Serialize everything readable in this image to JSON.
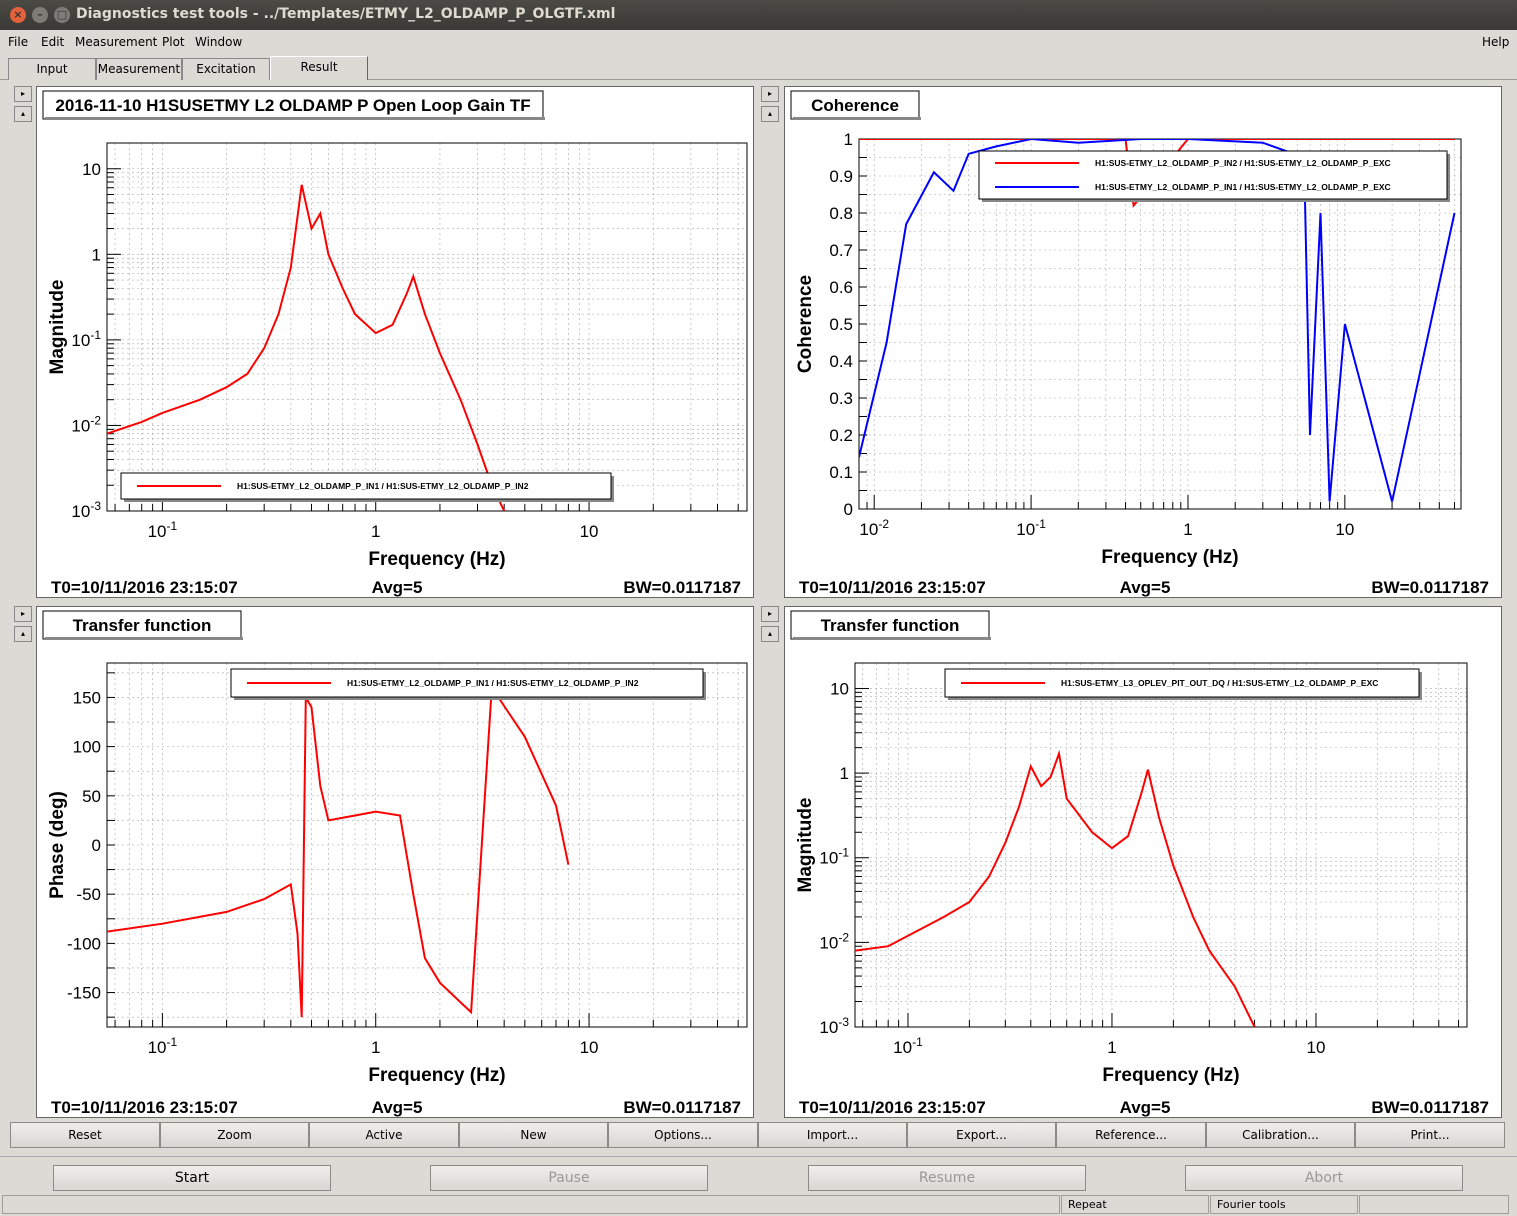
{
  "window": {
    "title": "Diagnostics test tools - ../Templates/ETMY_L2_OLDAMP_P_OLGTF.xml"
  },
  "menu": {
    "file": "File",
    "edit": "Edit",
    "measurement": "Measurement",
    "plot": "Plot",
    "window": "Window",
    "help": "Help"
  },
  "tabs": [
    {
      "label": "Input"
    },
    {
      "label": "Measurement"
    },
    {
      "label": "Excitation"
    },
    {
      "label": "Result"
    }
  ],
  "plots": [
    {
      "title": "2016-11-10 H1SUSETMY L2 OLDAMP P Open Loop Gain TF",
      "ylabel": "Magnitude",
      "xlabel": "Frequency (Hz)",
      "xticks": [
        "10^-1",
        "1",
        "10"
      ],
      "yticks": [
        "10",
        "1",
        "10^-1",
        "10^-2",
        "10^-3"
      ],
      "legend": [
        "H1:SUS-ETMY_L2_OLDAMP_P_IN1 / H1:SUS-ETMY_L2_OLDAMP_P_IN2"
      ],
      "t0": "T0=10/11/2016 23:15:07",
      "avg": "Avg=5",
      "bw": "BW=0.0117187"
    },
    {
      "title": "Coherence",
      "ylabel": "Coherence",
      "xlabel": "Frequency (Hz)",
      "xticks": [
        "10^-2",
        "10^-1",
        "1",
        "10"
      ],
      "yticks": [
        "1",
        "0.9",
        "0.8",
        "0.7",
        "0.6",
        "0.5",
        "0.4",
        "0.3",
        "0.2",
        "0.1",
        "0"
      ],
      "legend": [
        "H1:SUS-ETMY_L2_OLDAMP_P_IN2 / H1:SUS-ETMY_L2_OLDAMP_P_EXC",
        "H1:SUS-ETMY_L2_OLDAMP_P_IN1 / H1:SUS-ETMY_L2_OLDAMP_P_EXC"
      ],
      "t0": "T0=10/11/2016 23:15:07",
      "avg": "Avg=5",
      "bw": "BW=0.0117187"
    },
    {
      "title": "Transfer function",
      "ylabel": "Phase (deg)",
      "xlabel": "Frequency (Hz)",
      "xticks": [
        "10^-1",
        "1",
        "10"
      ],
      "yticks": [
        "150",
        "100",
        "50",
        "0",
        "-50",
        "-100",
        "-150"
      ],
      "legend": [
        "H1:SUS-ETMY_L2_OLDAMP_P_IN1 / H1:SUS-ETMY_L2_OLDAMP_P_IN2"
      ],
      "t0": "T0=10/11/2016 23:15:07",
      "avg": "Avg=5",
      "bw": "BW=0.0117187"
    },
    {
      "title": "Transfer function",
      "ylabel": "Magnitude",
      "xlabel": "Frequency (Hz)",
      "xticks": [
        "10^-1",
        "1",
        "10"
      ],
      "yticks": [
        "10",
        "1",
        "10^-1",
        "10^-2",
        "10^-3"
      ],
      "legend": [
        "H1:SUS-ETMY_L3_OPLEV_PIT_OUT_DQ / H1:SUS-ETMY_L2_OLDAMP_P_EXC"
      ],
      "t0": "T0=10/11/2016 23:15:07",
      "avg": "Avg=5",
      "bw": "BW=0.0117187"
    }
  ],
  "buttons": [
    "Reset",
    "Zoom",
    "Active",
    "New",
    "Options...",
    "Import...",
    "Export...",
    "Reference...",
    "Calibration...",
    "Print..."
  ],
  "controls": {
    "start": "Start",
    "pause": "Pause",
    "resume": "Resume",
    "abort": "Abort"
  },
  "status": {
    "repeat": "Repeat",
    "fourier": "Fourier tools"
  },
  "colors": {
    "trace_red": "#ff0000",
    "trace_blue": "#0000ff"
  },
  "chart_data": [
    {
      "type": "line",
      "scale": "log-log",
      "xlim": [
        0.055,
        55
      ],
      "ylim": [
        0.001,
        20
      ],
      "series": [
        {
          "name": "H1:SUS-ETMY_L2_OLDAMP_P_IN1 / H1:SUS-ETMY_L2_OLDAMP_P_IN2",
          "x": [
            0.055,
            0.08,
            0.1,
            0.15,
            0.2,
            0.25,
            0.3,
            0.35,
            0.4,
            0.45,
            0.5,
            0.55,
            0.6,
            0.7,
            0.8,
            1.0,
            1.2,
            1.4,
            1.5,
            1.7,
            2.0,
            2.5,
            3.0,
            3.5,
            4.0
          ],
          "y": [
            0.008,
            0.011,
            0.014,
            0.02,
            0.028,
            0.04,
            0.08,
            0.2,
            0.7,
            6.5,
            2.0,
            3.0,
            1.0,
            0.4,
            0.2,
            0.12,
            0.15,
            0.35,
            0.55,
            0.2,
            0.07,
            0.02,
            0.006,
            0.002,
            0.001
          ]
        }
      ]
    },
    {
      "type": "line",
      "scale": "log-x",
      "xlim": [
        0.008,
        55
      ],
      "ylim": [
        0,
        1
      ],
      "series": [
        {
          "name": "H1:SUS-ETMY_L2_OLDAMP_P_IN2 / H1:SUS-ETMY_L2_OLDAMP_P_EXC",
          "x": [
            0.008,
            0.1,
            0.4,
            0.45,
            1,
            10,
            50
          ],
          "y": [
            1.0,
            1.0,
            1.0,
            0.82,
            1.0,
            1.0,
            1.0
          ]
        },
        {
          "name": "H1:SUS-ETMY_L2_OLDAMP_P_IN1 / H1:SUS-ETMY_L2_OLDAMP_P_EXC",
          "x": [
            0.008,
            0.012,
            0.016,
            0.024,
            0.032,
            0.04,
            0.06,
            0.1,
            0.2,
            0.5,
            1,
            3,
            5.5,
            6,
            7,
            8,
            10,
            20,
            50
          ],
          "y": [
            0.14,
            0.45,
            0.77,
            0.91,
            0.86,
            0.96,
            0.98,
            1.0,
            0.99,
            1.0,
            1.0,
            0.99,
            0.95,
            0.2,
            0.8,
            0.02,
            0.5,
            0.02,
            0.8
          ]
        }
      ]
    },
    {
      "type": "line",
      "scale": "log-x",
      "xlim": [
        0.055,
        55
      ],
      "ylim": [
        -185,
        185
      ],
      "series": [
        {
          "name": "H1:SUS-ETMY_L2_OLDAMP_P_IN1 / H1:SUS-ETMY_L2_OLDAMP_P_IN2",
          "x": [
            0.055,
            0.1,
            0.2,
            0.3,
            0.4,
            0.43,
            0.45,
            0.47,
            0.5,
            0.55,
            0.6,
            0.8,
            1.0,
            1.3,
            1.5,
            1.7,
            2.0,
            2.5,
            2.8,
            3.5,
            5,
            7,
            8
          ],
          "y": [
            -88,
            -80,
            -68,
            -55,
            -40,
            -90,
            -175,
            150,
            140,
            60,
            25,
            30,
            34,
            30,
            -50,
            -115,
            -140,
            -160,
            -170,
            160,
            110,
            40,
            -20
          ]
        }
      ]
    },
    {
      "type": "line",
      "scale": "log-log",
      "xlim": [
        0.055,
        55
      ],
      "ylim": [
        0.001,
        20
      ],
      "series": [
        {
          "name": "H1:SUS-ETMY_L3_OPLEV_PIT_OUT_DQ / H1:SUS-ETMY_L2_OLDAMP_P_EXC",
          "x": [
            0.055,
            0.08,
            0.1,
            0.15,
            0.2,
            0.25,
            0.3,
            0.35,
            0.4,
            0.45,
            0.5,
            0.55,
            0.6,
            0.8,
            1.0,
            1.2,
            1.4,
            1.5,
            1.7,
            2.0,
            2.5,
            3.0,
            4.0,
            5.0
          ],
          "y": [
            0.008,
            0.009,
            0.012,
            0.02,
            0.03,
            0.06,
            0.15,
            0.4,
            1.2,
            0.7,
            0.9,
            1.7,
            0.5,
            0.2,
            0.13,
            0.18,
            0.6,
            1.1,
            0.3,
            0.08,
            0.02,
            0.008,
            0.003,
            0.001
          ]
        }
      ]
    }
  ]
}
